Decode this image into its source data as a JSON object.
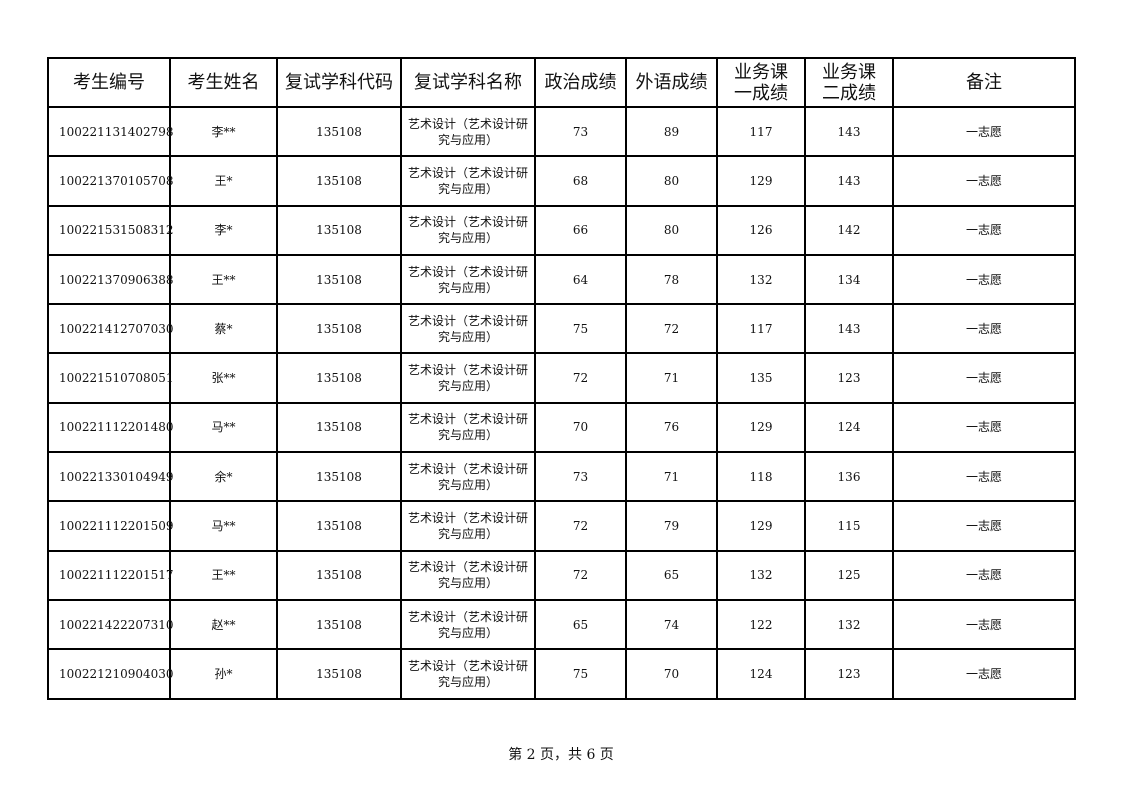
{
  "headers": [
    "考生编号",
    "考生姓名",
    "复试学科代码",
    "复试学科名称",
    "政治成绩",
    "外语成绩",
    "业务课一成绩",
    "业务课二成绩",
    "备注"
  ],
  "rows": [
    [
      "100221131402798",
      "李**",
      "135108",
      "艺术设计（艺术设计研究与应用）",
      "73",
      "89",
      "117",
      "143",
      "一志愿"
    ],
    [
      "100221370105708",
      "王*",
      "135108",
      "艺术设计（艺术设计研究与应用）",
      "68",
      "80",
      "129",
      "143",
      "一志愿"
    ],
    [
      "100221531508312",
      "李*",
      "135108",
      "艺术设计（艺术设计研究与应用）",
      "66",
      "80",
      "126",
      "142",
      "一志愿"
    ],
    [
      "100221370906388",
      "王**",
      "135108",
      "艺术设计（艺术设计研究与应用）",
      "64",
      "78",
      "132",
      "134",
      "一志愿"
    ],
    [
      "100221412707030",
      "蔡*",
      "135108",
      "艺术设计（艺术设计研究与应用）",
      "75",
      "72",
      "117",
      "143",
      "一志愿"
    ],
    [
      "100221510708051",
      "张**",
      "135108",
      "艺术设计（艺术设计研究与应用）",
      "72",
      "71",
      "135",
      "123",
      "一志愿"
    ],
    [
      "100221112201480",
      "马**",
      "135108",
      "艺术设计（艺术设计研究与应用）",
      "70",
      "76",
      "129",
      "124",
      "一志愿"
    ],
    [
      "100221330104949",
      "余*",
      "135108",
      "艺术设计（艺术设计研究与应用）",
      "73",
      "71",
      "118",
      "136",
      "一志愿"
    ],
    [
      "100221112201509",
      "马**",
      "135108",
      "艺术设计（艺术设计研究与应用）",
      "72",
      "79",
      "129",
      "115",
      "一志愿"
    ],
    [
      "100221112201517",
      "王**",
      "135108",
      "艺术设计（艺术设计研究与应用）",
      "72",
      "65",
      "132",
      "125",
      "一志愿"
    ],
    [
      "100221422207310",
      "赵**",
      "135108",
      "艺术设计（艺术设计研究与应用）",
      "65",
      "74",
      "122",
      "132",
      "一志愿"
    ],
    [
      "100221210904030",
      "孙*",
      "135108",
      "艺术设计（艺术设计研究与应用）",
      "75",
      "70",
      "124",
      "123",
      "一志愿"
    ]
  ],
  "footer": "第 2 页，共 6 页"
}
